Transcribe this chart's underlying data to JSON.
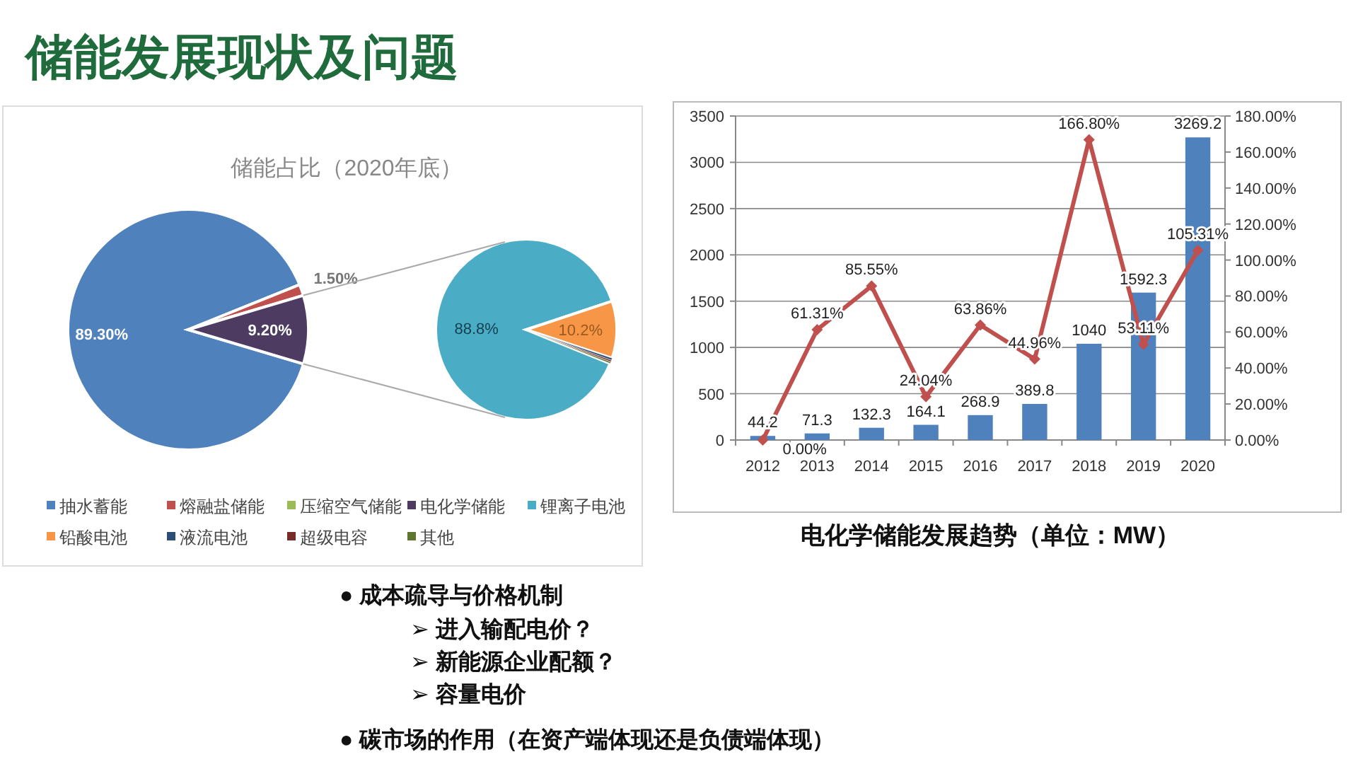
{
  "chart_data": [
    {
      "type": "other",
      "title": "储能发展现状及问题"
    },
    {
      "type": "pie",
      "title": "储能占比（2020年底）",
      "categories": [
        "抽水蓄能",
        "熔融盐储能",
        "压缩空气储能",
        "电化学储能"
      ],
      "values": [
        89.3,
        1.5,
        null,
        9.2
      ],
      "colors": [
        "#4f81bd",
        "#c0504d",
        "#9bbb59",
        "#4e3b62"
      ],
      "value_labels": [
        "89.30%",
        "1.50%",
        null,
        "9.20%"
      ],
      "legend": "bottom"
    },
    {
      "type": "pie",
      "categories": [
        "锂离子电池",
        "铅酸电池",
        "液流电池",
        "超级电容",
        "其他"
      ],
      "values": [
        88.8,
        10.2,
        0.4,
        0.3,
        0.3
      ],
      "colors": [
        "#4bacc6",
        "#f79646",
        "#2c4d75",
        "#772c2a",
        "#5f7530"
      ],
      "value_labels": [
        "88.8%",
        "10.2%",
        null,
        null,
        null
      ],
      "legend": "bottom"
    },
    {
      "type": "bar",
      "title": "电化学储能发展趋势（单位：MW）",
      "categories": [
        "2012",
        "2013",
        "2014",
        "2015",
        "2016",
        "2017",
        "2018",
        "2019",
        "2020"
      ],
      "ylim": [
        0,
        3500
      ],
      "yticks": [
        0,
        500,
        1000,
        1500,
        2000,
        2500,
        3000,
        3500
      ],
      "y2lim": [
        0,
        180
      ],
      "y2ticks": [
        {
          "value": 0,
          "label": "0.00%"
        },
        {
          "value": 20,
          "label": "20.00%"
        },
        {
          "value": 40,
          "label": "40.00%"
        },
        {
          "value": 60,
          "label": "60.00%"
        },
        {
          "value": 80,
          "label": "80.00%"
        },
        {
          "value": 100,
          "label": "100.00%"
        },
        {
          "value": 120,
          "label": "120.00%"
        },
        {
          "value": 140,
          "label": "140.00%"
        },
        {
          "value": 160,
          "label": "160.00%"
        },
        {
          "value": 180,
          "label": "180.00%"
        }
      ],
      "grid": "y",
      "series": [
        {
          "type": "bar",
          "color": "#4f81bd",
          "values": [
            44.2,
            71.3,
            132.3,
            164.1,
            268.9,
            389.8,
            1040,
            1592.3,
            3269.2
          ],
          "value_labels": [
            "44.2",
            "71.3",
            "132.3",
            "164.1",
            "268.9",
            "389.8",
            "1040",
            "1592.3",
            "3269.2"
          ]
        },
        {
          "type": "line",
          "axis": "y2",
          "color": "#c0504d",
          "marker": "diamond",
          "values": [
            0,
            61.31,
            85.55,
            24.04,
            63.86,
            44.96,
            166.8,
            53.11,
            105.31
          ],
          "value_labels": [
            "0.00%",
            "61.31%",
            "85.55%",
            "24.04%",
            "63.86%",
            "44.96%",
            "166.80%",
            "53.11%",
            "105.31%"
          ]
        }
      ]
    },
    {
      "type": "other",
      "annotations": [
        "● 成本疏导与价格机制",
        "➢ 进入输配电价？",
        "➢ 新能源企业配额？",
        "➢ 容量电价",
        "● 碳市场的作用（在资产端体现还是负债端体现）"
      ]
    }
  ]
}
